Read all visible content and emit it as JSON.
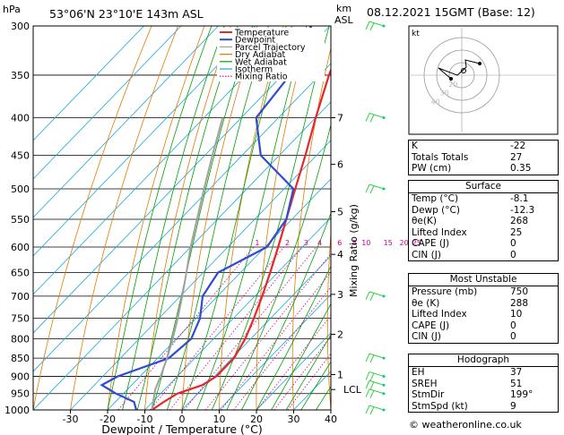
{
  "header": {
    "hpa_label": "hPa",
    "location": "53°06'N  23°10'E  143m  ASL",
    "km_label": "km",
    "asl_label": "ASL",
    "datetime": "08.12.2021  15GMT  (Base: 12)"
  },
  "footer": "© weatheronline.co.uk",
  "chart_data": {
    "type": "line",
    "title": "",
    "xlabel": "Dewpoint / Temperature (°C)",
    "ylabel": "Mixing Ratio (g/kg)",
    "xlim": [
      -40,
      40
    ],
    "pressure_levels": [
      "300",
      "350",
      "400",
      "450",
      "500",
      "550",
      "600",
      "650",
      "700",
      "750",
      "800",
      "850",
      "900",
      "950",
      "1000"
    ],
    "x_ticks": [
      "-30",
      "-20",
      "-10",
      "0",
      "10",
      "20",
      "30",
      "40"
    ],
    "km_ticks": [
      {
        "km": "7",
        "p": 400
      },
      {
        "km": "6",
        "p": 463
      },
      {
        "km": "5",
        "p": 537
      },
      {
        "km": "4",
        "p": 614
      },
      {
        "km": "3",
        "p": 696
      },
      {
        "km": "2",
        "p": 789
      },
      {
        "km": "1",
        "p": 895
      }
    ],
    "lcl_label": "LCL",
    "lcl_p": 938,
    "mixing_ratio_labels": [
      "1",
      "2",
      "3",
      "4",
      "6",
      "8",
      "10",
      "15",
      "20",
      "25"
    ],
    "mixing_ratio_label_p": 592,
    "legend": [
      {
        "name": "Temperature",
        "color": "#e8262a"
      },
      {
        "name": "Dewpoint",
        "color": "#2f4bd3"
      },
      {
        "name": "Parcel Trajectory",
        "color": "#a0a0a0"
      },
      {
        "name": "Dry Adiabat",
        "color": "#e07b00"
      },
      {
        "name": "Wet Adiabat",
        "color": "#00a000"
      },
      {
        "name": "Isotherm",
        "color": "#16a9e0"
      },
      {
        "name": "Mixing Ratio",
        "color": "#d0008a"
      }
    ],
    "series": [
      {
        "name": "Temperature",
        "points": [
          [
            1000,
            -8.1
          ],
          [
            975,
            -7.0
          ],
          [
            950,
            -5.5
          ],
          [
            925,
            -1.0
          ],
          [
            900,
            0.5
          ],
          [
            850,
            0.5
          ],
          [
            800,
            -1.5
          ],
          [
            750,
            -4.5
          ],
          [
            700,
            -8.0
          ],
          [
            650,
            -12.0
          ],
          [
            600,
            -16.5
          ],
          [
            550,
            -21.5
          ],
          [
            500,
            -27.0
          ],
          [
            450,
            -33.0
          ],
          [
            400,
            -40.0
          ],
          [
            350,
            -47.5
          ],
          [
            300,
            -55.0
          ]
        ]
      },
      {
        "name": "Dewpoint",
        "points": [
          [
            1000,
            -12.3
          ],
          [
            975,
            -15.0
          ],
          [
            950,
            -22.0
          ],
          [
            925,
            -28.0
          ],
          [
            900,
            -26.0
          ],
          [
            850,
            -17.0
          ],
          [
            800,
            -16.0
          ],
          [
            750,
            -19.0
          ],
          [
            700,
            -24.0
          ],
          [
            650,
            -26.0
          ],
          [
            600,
            -19.5
          ],
          [
            550,
            -21.5
          ],
          [
            500,
            -27.5
          ],
          [
            450,
            -45.0
          ],
          [
            400,
            -56.0
          ],
          [
            350,
            -58.0
          ],
          [
            300,
            -65.0
          ]
        ]
      },
      {
        "name": "Parcel Trajectory",
        "points": [
          [
            1000,
            -8.1
          ],
          [
            938,
            -12.5
          ],
          [
            900,
            -14.5
          ],
          [
            850,
            -17.5
          ],
          [
            800,
            -21.0
          ],
          [
            750,
            -25.0
          ],
          [
            700,
            -29.5
          ],
          [
            650,
            -34.5
          ],
          [
            600,
            -40.0
          ],
          [
            550,
            -45.5
          ],
          [
            500,
            -51.5
          ],
          [
            450,
            -58.0
          ],
          [
            400,
            -65.0
          ]
        ]
      }
    ],
    "wind_barbs_p": [
      300,
      400,
      500,
      700,
      850,
      900,
      925,
      950,
      1000
    ],
    "hodograph": {
      "label": "kt",
      "ring_labels": [
        "40",
        "30",
        "20"
      ]
    }
  },
  "indices": [
    {
      "k": "K",
      "v": "-22"
    },
    {
      "k": "Totals Totals",
      "v": "27"
    },
    {
      "k": "PW (cm)",
      "v": "0.35"
    }
  ],
  "surface": {
    "title": "Surface",
    "rows": [
      {
        "k": "Temp (°C)",
        "v": "-8.1"
      },
      {
        "k": "Dewp (°C)",
        "v": "-12.3"
      },
      {
        "k": "θe(K)",
        "v": "268"
      },
      {
        "k": "Lifted Index",
        "v": "25"
      },
      {
        "k": "CAPE (J)",
        "v": "0"
      },
      {
        "k": "CIN (J)",
        "v": "0"
      }
    ]
  },
  "most_unstable": {
    "title": "Most Unstable",
    "rows": [
      {
        "k": "Pressure (mb)",
        "v": "750"
      },
      {
        "k": "θe (K)",
        "v": "288"
      },
      {
        "k": "Lifted Index",
        "v": "10"
      },
      {
        "k": "CAPE (J)",
        "v": "0"
      },
      {
        "k": "CIN (J)",
        "v": "0"
      }
    ]
  },
  "hodograph_table": {
    "title": "Hodograph",
    "rows": [
      {
        "k": "EH",
        "v": "37"
      },
      {
        "k": "SREH",
        "v": "51"
      },
      {
        "k": "StmDir",
        "v": "199°"
      },
      {
        "k": "StmSpd (kt)",
        "v": "9"
      }
    ]
  }
}
